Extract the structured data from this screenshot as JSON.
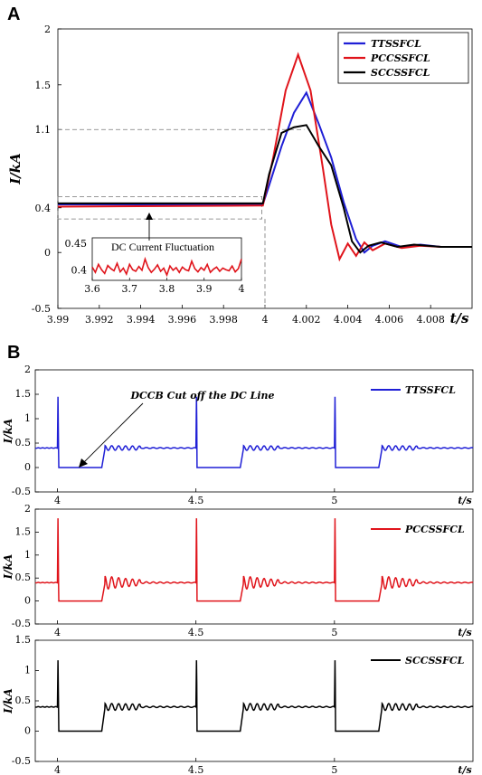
{
  "panel_a_letter": "A",
  "panel_b_letter": "B",
  "chart_data": [
    {
      "type": "line",
      "panel": "A",
      "xlabel": "t/s",
      "ylabel": "I/kA",
      "xlim": [
        3.99,
        4.01
      ],
      "ylim": [
        -0.5,
        2
      ],
      "xticks": [
        "3.99",
        "3.992",
        "3.994",
        "3.996",
        "3.998",
        "4",
        "4.002",
        "4.004",
        "4.006",
        "4.008"
      ],
      "yticks": [
        "2",
        "1.5",
        "1.1",
        "0.4",
        "0",
        "-0.5"
      ],
      "legend_position": "top-right",
      "series": [
        {
          "name": "TTSSFCL",
          "color": "#1f1fd6",
          "x": [
            3.99,
            3.9999,
            4.0002,
            4.0008,
            4.0014,
            4.002,
            4.0026,
            4.0032,
            4.0038,
            4.0044,
            4.0048,
            4.0052,
            4.0058,
            4.0066,
            4.0075,
            4.0085,
            4.01
          ],
          "y": [
            0.43,
            0.43,
            0.6,
            0.95,
            1.25,
            1.43,
            1.15,
            0.85,
            0.45,
            0.12,
            0.0,
            0.06,
            0.1,
            0.05,
            0.07,
            0.05,
            0.05
          ]
        },
        {
          "name": "PCCSSFCL",
          "color": "#e0141b",
          "x": [
            3.99,
            3.9999,
            4.0004,
            4.001,
            4.0016,
            4.0022,
            4.0028,
            4.0032,
            4.0036,
            4.004,
            4.0044,
            4.0048,
            4.0052,
            4.0058,
            4.0066,
            4.0075,
            4.0085,
            4.01
          ],
          "y": [
            0.41,
            0.42,
            0.85,
            1.45,
            1.77,
            1.45,
            0.75,
            0.25,
            -0.06,
            0.08,
            -0.03,
            0.09,
            0.02,
            0.08,
            0.04,
            0.06,
            0.05,
            0.05
          ]
        },
        {
          "name": "SCCSSFCL",
          "color": "#000000",
          "x": [
            3.99,
            3.9999,
            4.0002,
            4.0008,
            4.0014,
            4.002,
            4.0026,
            4.0032,
            4.0038,
            4.0042,
            4.0046,
            4.005,
            4.0056,
            4.0064,
            4.0072,
            4.0085,
            4.01
          ],
          "y": [
            0.44,
            0.44,
            0.7,
            1.07,
            1.12,
            1.14,
            0.95,
            0.78,
            0.4,
            0.1,
            0.0,
            0.06,
            0.09,
            0.05,
            0.07,
            0.05,
            0.05
          ]
        }
      ],
      "inset": {
        "label": "DC Current Fluctuation",
        "xlim": [
          3.6,
          4
        ],
        "ylim": [
          0.38,
          0.46
        ],
        "xticks": [
          "3.6",
          "3.7",
          "3.8",
          "3.9",
          "4"
        ],
        "yticks": [
          "0.45",
          "0.4"
        ],
        "series_color": "#e0141b",
        "values": [
          0.405,
          0.395,
          0.41,
          0.4,
          0.393,
          0.408,
          0.402,
          0.398,
          0.412,
          0.396,
          0.403,
          0.392,
          0.41,
          0.4,
          0.397,
          0.406,
          0.399,
          0.42,
          0.404,
          0.395,
          0.401,
          0.409,
          0.397,
          0.403,
          0.39,
          0.407,
          0.399,
          0.404,
          0.395,
          0.405,
          0.4,
          0.398,
          0.416,
          0.402,
          0.396,
          0.404,
          0.399,
          0.41,
          0.395,
          0.401,
          0.405,
          0.397,
          0.403,
          0.4,
          0.398,
          0.407,
          0.396,
          0.402,
          0.42
        ]
      }
    },
    {
      "type": "line",
      "panel": "B1",
      "xlabel": "t/s",
      "ylabel": "I/kA",
      "xlim": [
        3.92,
        5.5
      ],
      "ylim": [
        -0.5,
        2
      ],
      "xticks": [
        "4",
        "4.5",
        "5"
      ],
      "yticks": [
        "2",
        "1.5",
        "1",
        "0.5",
        "0",
        "-0.5"
      ],
      "legend_position": "top-right",
      "annotation": "DCCB Cut off the DC Line",
      "series": [
        {
          "name": "TTSSFCL",
          "color": "#1f1fd6",
          "base": 0.4,
          "spike": 1.45,
          "ring_amp": 0.05,
          "ring_decay": 0.6
        }
      ]
    },
    {
      "type": "line",
      "panel": "B2",
      "xlabel": "t/s",
      "ylabel": "I/kA",
      "xlim": [
        3.92,
        5.5
      ],
      "ylim": [
        -0.5,
        2
      ],
      "xticks": [
        "4",
        "4.5",
        "5"
      ],
      "yticks": [
        "2",
        "1.5",
        "1",
        "0.5",
        "0",
        "-0.5"
      ],
      "legend_position": "top-right",
      "series": [
        {
          "name": "PCCSSFCL",
          "color": "#e0141b",
          "base": 0.4,
          "spike": 1.8,
          "ring_amp": 0.16,
          "ring_decay": 0.15
        }
      ]
    },
    {
      "type": "line",
      "panel": "B3",
      "xlabel": "t/s",
      "ylabel": "I/kA",
      "xlim": [
        3.92,
        5.5
      ],
      "ylim": [
        -0.5,
        1.5
      ],
      "xticks": [
        "4",
        "4.5",
        "5"
      ],
      "yticks": [
        "1.5",
        "1",
        "0.5",
        "0",
        "-0.5"
      ],
      "legend_position": "top-right",
      "series": [
        {
          "name": "SCCSSFCL",
          "color": "#000000",
          "base": 0.4,
          "spike": 1.17,
          "ring_amp": 0.06,
          "ring_decay": 0.5
        }
      ]
    }
  ]
}
